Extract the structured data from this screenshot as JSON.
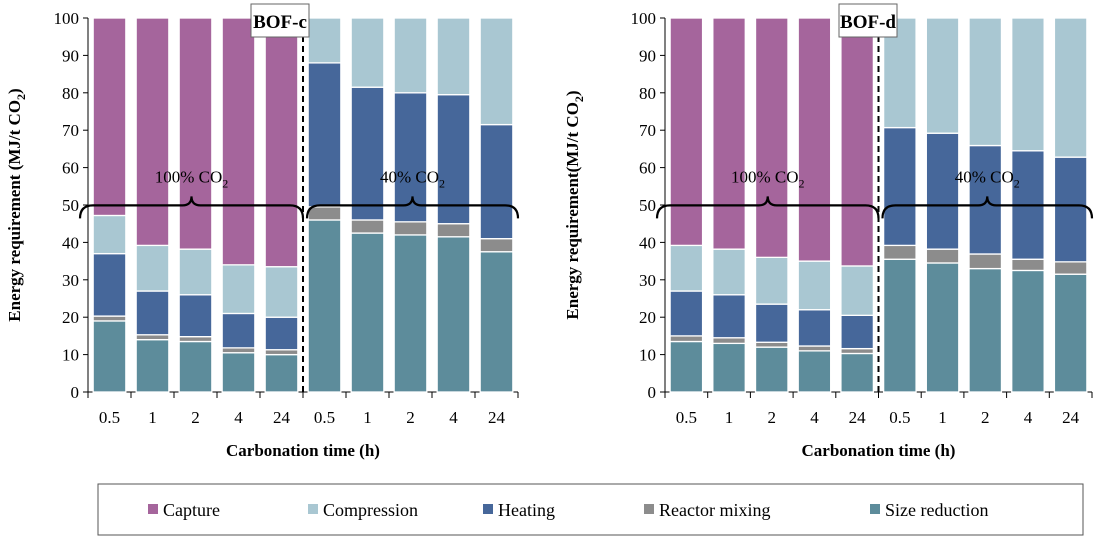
{
  "chart_data": [
    {
      "type": "bar",
      "stacked": true,
      "title": "BOF-c",
      "xlabel": "Carbonation time (h)",
      "ylabel": "Energy requirement (MJ/t CO2)",
      "ylabel_main": "Energy requirement (MJ/t CO",
      "ylabel_sub": "2",
      "ylabel_end": ")",
      "ylim": [
        0,
        100
      ],
      "yticks": [
        "0",
        "10",
        "20",
        "30",
        "40",
        "50",
        "60",
        "70",
        "80",
        "90",
        "100"
      ],
      "categories": [
        "0.5",
        "1",
        "2",
        "4",
        "24",
        "0.5",
        "1",
        "2",
        "4",
        "24"
      ],
      "groups": [
        {
          "label_main": "100% CO",
          "label_sub": "2",
          "from": 0,
          "to": 4
        },
        {
          "label_main": "40% CO",
          "label_sub": "2",
          "from": 5,
          "to": 9
        }
      ],
      "series": [
        {
          "name": "Size reduction",
          "values": [
            19,
            14,
            13.5,
            10.5,
            10,
            46,
            42.5,
            42,
            41.5,
            37.5
          ]
        },
        {
          "name": "Reactor mixing",
          "values": [
            1.3,
            1.3,
            1.3,
            1.3,
            1.3,
            3.5,
            3.5,
            3.5,
            3.5,
            3.5
          ]
        },
        {
          "name": "Heating",
          "values": [
            16.7,
            11.7,
            11.2,
            9.2,
            8.7,
            38.5,
            35.5,
            34.5,
            34.5,
            30.5
          ]
        },
        {
          "name": "Compression",
          "values": [
            10.2,
            12.2,
            12.2,
            13,
            13.5,
            12,
            18.5,
            20,
            20.5,
            28.5
          ]
        },
        {
          "name": "Capture",
          "values": [
            52.8,
            60.8,
            61.8,
            66,
            66.5,
            0,
            0,
            0,
            0,
            0
          ]
        }
      ]
    },
    {
      "type": "bar",
      "stacked": true,
      "title": "BOF-d",
      "xlabel": "Carbonation time (h)",
      "ylabel": "Energy requirement(MJ/t CO2)",
      "ylabel_main": "Energy requirement(MJ/t CO",
      "ylabel_sub": "2",
      "ylabel_end": ")",
      "ylim": [
        0,
        100
      ],
      "yticks": [
        "0",
        "10",
        "20",
        "30",
        "40",
        "50",
        "60",
        "70",
        "80",
        "90",
        "100"
      ],
      "categories": [
        "0.5",
        "1",
        "2",
        "4",
        "24",
        "0.5",
        "1",
        "2",
        "4",
        "24"
      ],
      "groups": [
        {
          "label_main": "100% CO",
          "label_sub": "2",
          "from": 0,
          "to": 4
        },
        {
          "label_main": "40% CO",
          "label_sub": "2",
          "from": 5,
          "to": 9
        }
      ],
      "series": [
        {
          "name": "Size reduction",
          "values": [
            13.5,
            13,
            12,
            11,
            10.3,
            35.5,
            34.5,
            33,
            32.5,
            31.5
          ]
        },
        {
          "name": "Reactor mixing",
          "values": [
            1.5,
            1.5,
            1.3,
            1.3,
            1.3,
            3.7,
            3.7,
            3.9,
            3,
            3.3
          ]
        },
        {
          "name": "Heating",
          "values": [
            12,
            11.5,
            10.2,
            9.7,
            8.9,
            31.5,
            31,
            29,
            29,
            28
          ]
        },
        {
          "name": "Compression",
          "values": [
            12.2,
            12.2,
            12.5,
            13,
            13.2,
            29.3,
            30.8,
            34.1,
            35.5,
            37.2
          ]
        },
        {
          "name": "Capture",
          "values": [
            60.8,
            61.8,
            64,
            65,
            66.3,
            0,
            0,
            0,
            0,
            0
          ]
        }
      ]
    }
  ],
  "legend": {
    "items": [
      {
        "label": "Capture",
        "color": "#A5659C"
      },
      {
        "label": "Compression",
        "color": "#A9C7D2"
      },
      {
        "label": "Heating",
        "color": "#46679A"
      },
      {
        "label": "Reactor mixing",
        "color": "#8C8C8C"
      },
      {
        "label": "Size reduction",
        "color": "#5D8C9B"
      }
    ]
  },
  "colors": {
    "Capture": "#A5659C",
    "Compression": "#A9C7D2",
    "Heating": "#46679A",
    "Reactor mixing": "#8C8C8C",
    "Size reduction": "#5D8C9B"
  }
}
